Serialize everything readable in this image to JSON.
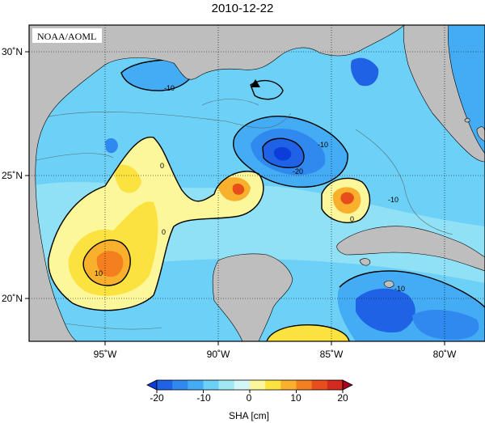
{
  "title": "2010-12-22",
  "credit": "NOAA/AOML",
  "map": {
    "lon_range": [
      -98,
      -78
    ],
    "lat_range": [
      18,
      31
    ],
    "lon_ticks": [
      {
        "value": -95,
        "label": "95˚W"
      },
      {
        "value": -90,
        "label": "90˚W"
      },
      {
        "value": -85,
        "label": "85˚W"
      },
      {
        "value": -80,
        "label": "80˚W"
      }
    ],
    "lat_ticks": [
      {
        "value": 30,
        "label": "30˚N"
      },
      {
        "value": 25,
        "label": "25˚N"
      },
      {
        "value": 20,
        "label": "20˚N"
      }
    ],
    "grid": "dotted",
    "land_color": "#bebebe",
    "marker": {
      "lon": -88.5,
      "lat": 28.6,
      "shape": "triangle"
    },
    "contour_labels": [
      "-10",
      "-10",
      "-20",
      "0",
      "-10",
      "0",
      "0",
      "10",
      "-10"
    ]
  },
  "colorbar": {
    "label": "SHA [cm]",
    "ticks": [
      "-20",
      "-10",
      "0",
      "10",
      "20"
    ],
    "range": [
      -20,
      20
    ],
    "colors": [
      "#0c3dd8",
      "#1f62e6",
      "#2f89ee",
      "#44acf4",
      "#6dd0f7",
      "#a1e8f5",
      "#d3f6f7",
      "#fbf79a",
      "#fbe23e",
      "#f9b02c",
      "#f47f1f",
      "#e84d1c",
      "#d42a1f",
      "#a8001f"
    ]
  }
}
